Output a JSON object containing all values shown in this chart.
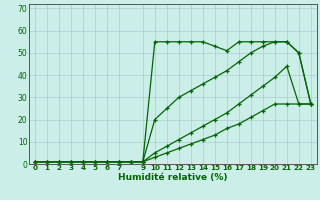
{
  "xlabel": "Humidité relative (%)",
  "ylabel": "",
  "background_color": "#cceee8",
  "grid_color": "#aacccc",
  "line_color": "#006600",
  "xlim": [
    -0.5,
    23.5
  ],
  "ylim": [
    0,
    72
  ],
  "xticks": [
    0,
    1,
    2,
    3,
    4,
    5,
    6,
    7,
    9,
    10,
    11,
    12,
    13,
    14,
    15,
    16,
    17,
    18,
    19,
    20,
    21,
    22,
    23
  ],
  "yticks": [
    0,
    10,
    20,
    30,
    40,
    50,
    60,
    70
  ],
  "series": [
    {
      "x": [
        0,
        1,
        2,
        3,
        4,
        5,
        6,
        7,
        8,
        9,
        10,
        11,
        12,
        13,
        14,
        15,
        16,
        17,
        18,
        19,
        20,
        21,
        22,
        23
      ],
      "y": [
        1,
        1,
        1,
        1,
        1,
        1,
        1,
        1,
        1,
        1,
        55,
        55,
        55,
        55,
        55,
        53,
        51,
        55,
        55,
        55,
        55,
        55,
        50,
        27
      ]
    },
    {
      "x": [
        0,
        1,
        2,
        3,
        4,
        5,
        6,
        7,
        8,
        9,
        10,
        11,
        12,
        13,
        14,
        15,
        16,
        17,
        18,
        19,
        20,
        21,
        22,
        23
      ],
      "y": [
        1,
        1,
        1,
        1,
        1,
        1,
        1,
        1,
        1,
        1,
        20,
        25,
        30,
        33,
        36,
        39,
        42,
        46,
        50,
        53,
        55,
        55,
        50,
        27
      ]
    },
    {
      "x": [
        0,
        1,
        2,
        3,
        4,
        5,
        6,
        7,
        8,
        9,
        10,
        11,
        12,
        13,
        14,
        15,
        16,
        17,
        18,
        19,
        20,
        21,
        22,
        23
      ],
      "y": [
        1,
        1,
        1,
        1,
        1,
        1,
        1,
        1,
        1,
        1,
        5,
        8,
        11,
        14,
        17,
        20,
        23,
        27,
        31,
        35,
        39,
        44,
        27,
        27
      ]
    },
    {
      "x": [
        0,
        1,
        2,
        3,
        4,
        5,
        6,
        7,
        8,
        9,
        10,
        11,
        12,
        13,
        14,
        15,
        16,
        17,
        18,
        19,
        20,
        21,
        22,
        23
      ],
      "y": [
        1,
        1,
        1,
        1,
        1,
        1,
        1,
        1,
        1,
        1,
        3,
        5,
        7,
        9,
        11,
        13,
        16,
        18,
        21,
        24,
        27,
        27,
        27,
        27
      ]
    }
  ]
}
